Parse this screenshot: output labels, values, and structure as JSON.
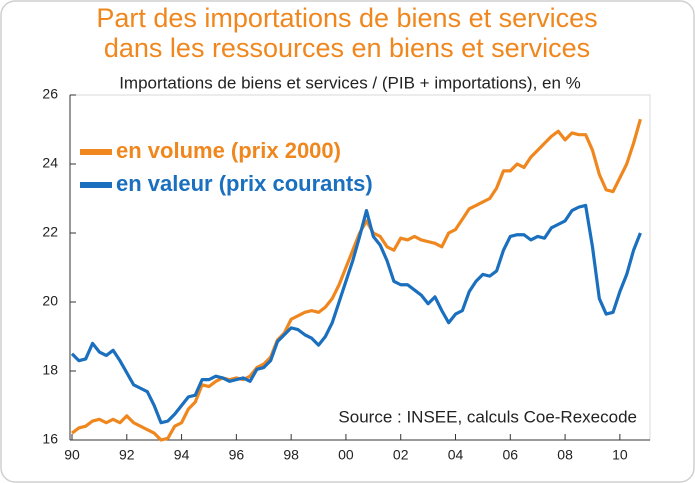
{
  "chart_data": {
    "type": "line",
    "title": [
      "Part des importations de biens et services",
      "dans les ressources en biens et services"
    ],
    "subtitle": "Importations de biens et services / (PIB + importations), en %",
    "source": "Source : INSEE, calculs Coe-Rexecode",
    "legend": "upper left",
    "x": [
      1990,
      1990.25,
      1990.5,
      1990.75,
      1991,
      1991.25,
      1991.5,
      1991.75,
      1992,
      1992.25,
      1992.5,
      1992.75,
      1993,
      1993.25,
      1993.5,
      1993.75,
      1994,
      1994.25,
      1994.5,
      1994.75,
      1995,
      1995.25,
      1995.5,
      1995.75,
      1996,
      1996.25,
      1996.5,
      1996.75,
      1997,
      1997.25,
      1997.5,
      1997.75,
      1998,
      1998.25,
      1998.5,
      1998.75,
      1999,
      1999.25,
      1999.5,
      1999.75,
      2000,
      2000.25,
      2000.5,
      2000.75,
      2001,
      2001.25,
      2001.5,
      2001.75,
      2002,
      2002.25,
      2002.5,
      2002.75,
      2003,
      2003.25,
      2003.5,
      2003.75,
      2004,
      2004.25,
      2004.5,
      2004.75,
      2005,
      2005.25,
      2005.5,
      2005.75,
      2006,
      2006.25,
      2006.5,
      2006.75,
      2007,
      2007.25,
      2007.5,
      2007.75,
      2008,
      2008.25,
      2008.5,
      2008.75,
      2009,
      2009.25,
      2009.5,
      2009.75,
      2010,
      2010.25,
      2010.5,
      2010.75
    ],
    "series": [
      {
        "name": "en volume (prix 2000)",
        "color": "#f0871e",
        "values": [
          16.2,
          16.35,
          16.4,
          16.55,
          16.6,
          16.5,
          16.6,
          16.5,
          16.7,
          16.5,
          16.4,
          16.3,
          16.2,
          16.0,
          16.05,
          16.4,
          16.5,
          16.9,
          17.1,
          17.6,
          17.55,
          17.7,
          17.8,
          17.75,
          17.8,
          17.75,
          17.85,
          18.1,
          18.2,
          18.4,
          18.9,
          19.1,
          19.5,
          19.6,
          19.7,
          19.75,
          19.7,
          19.85,
          20.1,
          20.5,
          21.0,
          21.5,
          22.0,
          22.35,
          22.0,
          21.9,
          21.6,
          21.5,
          21.85,
          21.8,
          21.9,
          21.8,
          21.75,
          21.7,
          21.6,
          22.0,
          22.1,
          22.4,
          22.7,
          22.8,
          22.9,
          23.0,
          23.3,
          23.8,
          23.8,
          24.0,
          23.9,
          24.2,
          24.4,
          24.6,
          24.8,
          24.95,
          24.7,
          24.9,
          24.85,
          24.85,
          24.4,
          23.7,
          23.25,
          23.2,
          23.6,
          24.0,
          24.6,
          25.3
        ]
      },
      {
        "name": "en valeur (prix courants)",
        "color": "#1a6fbe",
        "values": [
          18.5,
          18.3,
          18.35,
          18.8,
          18.55,
          18.45,
          18.6,
          18.3,
          17.95,
          17.6,
          17.5,
          17.4,
          17.0,
          16.5,
          16.55,
          16.75,
          17.0,
          17.25,
          17.3,
          17.75,
          17.75,
          17.85,
          17.8,
          17.7,
          17.75,
          17.8,
          17.7,
          18.05,
          18.1,
          18.3,
          18.85,
          19.05,
          19.25,
          19.2,
          19.05,
          18.95,
          18.75,
          19.0,
          19.4,
          20.0,
          20.6,
          21.2,
          21.9,
          22.65,
          21.9,
          21.65,
          21.2,
          20.6,
          20.5,
          20.5,
          20.35,
          20.2,
          19.95,
          20.15,
          19.75,
          19.4,
          19.65,
          19.75,
          20.3,
          20.6,
          20.8,
          20.75,
          20.9,
          21.5,
          21.9,
          21.95,
          21.95,
          21.8,
          21.9,
          21.85,
          22.15,
          22.25,
          22.35,
          22.65,
          22.75,
          22.8,
          21.6,
          20.1,
          19.65,
          19.7,
          20.3,
          20.8,
          21.5,
          22.0
        ]
      }
    ],
    "xlim": [
      1990,
      2011.1
    ],
    "xticks": [
      {
        "value": 1990,
        "label": "90"
      },
      {
        "value": 1992,
        "label": "92"
      },
      {
        "value": 1994,
        "label": "94"
      },
      {
        "value": 1996,
        "label": "96"
      },
      {
        "value": 1998,
        "label": "98"
      },
      {
        "value": 2000,
        "label": "00"
      },
      {
        "value": 2002,
        "label": "02"
      },
      {
        "value": 2004,
        "label": "04"
      },
      {
        "value": 2006,
        "label": "06"
      },
      {
        "value": 2008,
        "label": "08"
      },
      {
        "value": 2010,
        "label": "10"
      }
    ],
    "ylim": [
      16,
      26
    ],
    "yticks": [
      16,
      18,
      20,
      22,
      24,
      26
    ]
  }
}
